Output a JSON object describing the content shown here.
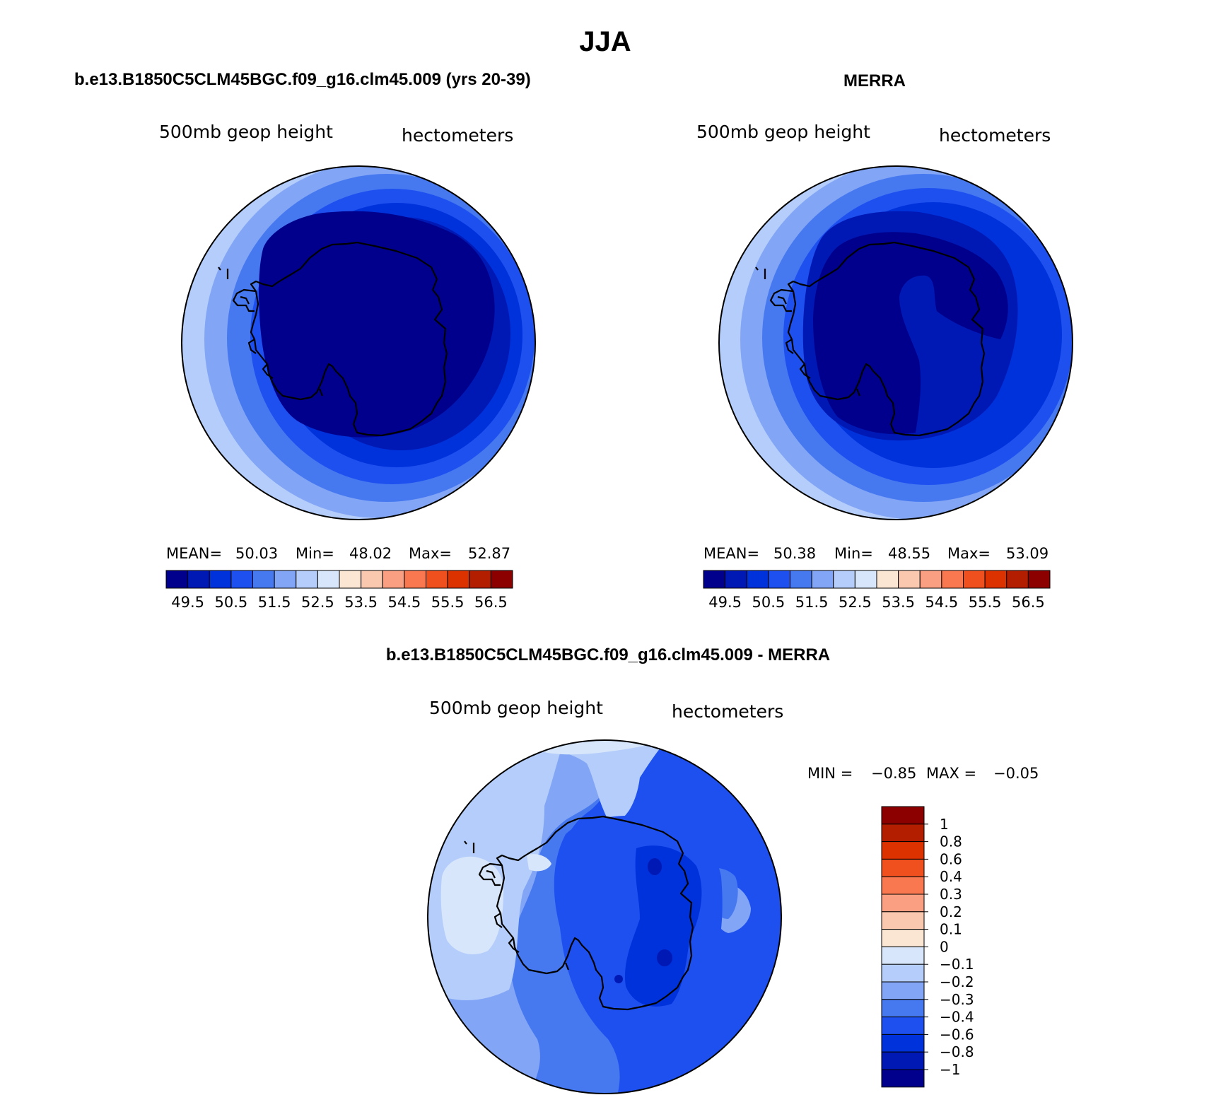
{
  "page_title": "JJA",
  "panels": [
    {
      "id": "model",
      "title": "b.e13.B1850C5CLM45BGC.f09_g16.clm45.009 (yrs 20-39)",
      "variable": "500mb geop height",
      "units": "hectometers",
      "stats": {
        "mean_label": "MEAN=",
        "mean": "50.03",
        "min_label": "Min=",
        "min": "48.02",
        "max_label": "Max=",
        "max": "52.87"
      }
    },
    {
      "id": "obs",
      "title": "MERRA",
      "variable": "500mb geop height",
      "units": "hectometers",
      "stats": {
        "mean_label": "MEAN=",
        "mean": "50.38",
        "min_label": "Min=",
        "min": "48.55",
        "max_label": "Max=",
        "max": "53.09"
      }
    },
    {
      "id": "diff",
      "title": "b.e13.B1850C5CLM45BGC.f09_g16.clm45.009 - MERRA",
      "variable": "500mb geop height",
      "units": "hectometers",
      "stats": {
        "min_label": "MIN =",
        "min": "−0.85",
        "max_label": "MAX =",
        "max": "−0.05"
      }
    }
  ],
  "colorbar_abs": {
    "colors": [
      "#00008c",
      "#0019b4",
      "#0032dc",
      "#1e50f0",
      "#4678f0",
      "#82a5f5",
      "#b4cdfa",
      "#d7e6fa",
      "#fae6d2",
      "#fac8af",
      "#fa9f82",
      "#fa7850",
      "#f0501e",
      "#dc3200",
      "#b41e00",
      "#8c0000"
    ],
    "labels": [
      "49.5",
      "50.5",
      "51.5",
      "52.5",
      "53.5",
      "54.5",
      "55.5",
      "56.5"
    ]
  },
  "colorbar_diff": {
    "colors": [
      "#00008c",
      "#0019b4",
      "#0032dc",
      "#1e50f0",
      "#4678f0",
      "#82a5f5",
      "#b4cdfa",
      "#d7e6fa",
      "#fae6d2",
      "#fac8af",
      "#fa9f82",
      "#fa7850",
      "#f0501e",
      "#dc3200",
      "#b41e00",
      "#8c0000"
    ],
    "labels": [
      "1",
      "0.8",
      "0.6",
      "0.4",
      "0.3",
      "0.2",
      "0.1",
      "0",
      "−0.1",
      "−0.2",
      "−0.3",
      "−0.4",
      "−0.6",
      "−0.8",
      "−1"
    ]
  }
}
